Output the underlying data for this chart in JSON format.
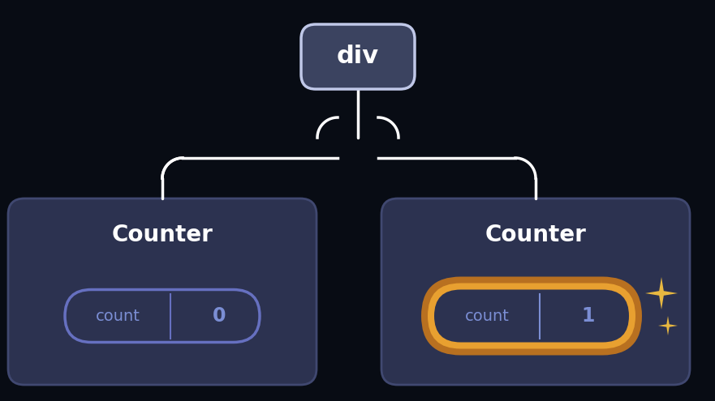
{
  "bg_color": "#080c14",
  "div_box_color": "#3b4360",
  "div_box_edge_color": "#c0c8e8",
  "div_label": "div",
  "counter_box_color": "#2c3250",
  "counter_box_edge_color": "#404870",
  "counter_label": "Counter",
  "state_label": "count",
  "state_text_color": "#7b8ed4",
  "counter_text_color": "#ffffff",
  "state_val_left": "0",
  "state_val_right": "1",
  "pill_border_left": "#6670c0",
  "pill_border_right_outer": "#b87020",
  "pill_border_right_inner": "#e8a030",
  "pill_fill": "#2c3250",
  "connector_color": "#ffffff",
  "sparkle_color": "#e8b840"
}
